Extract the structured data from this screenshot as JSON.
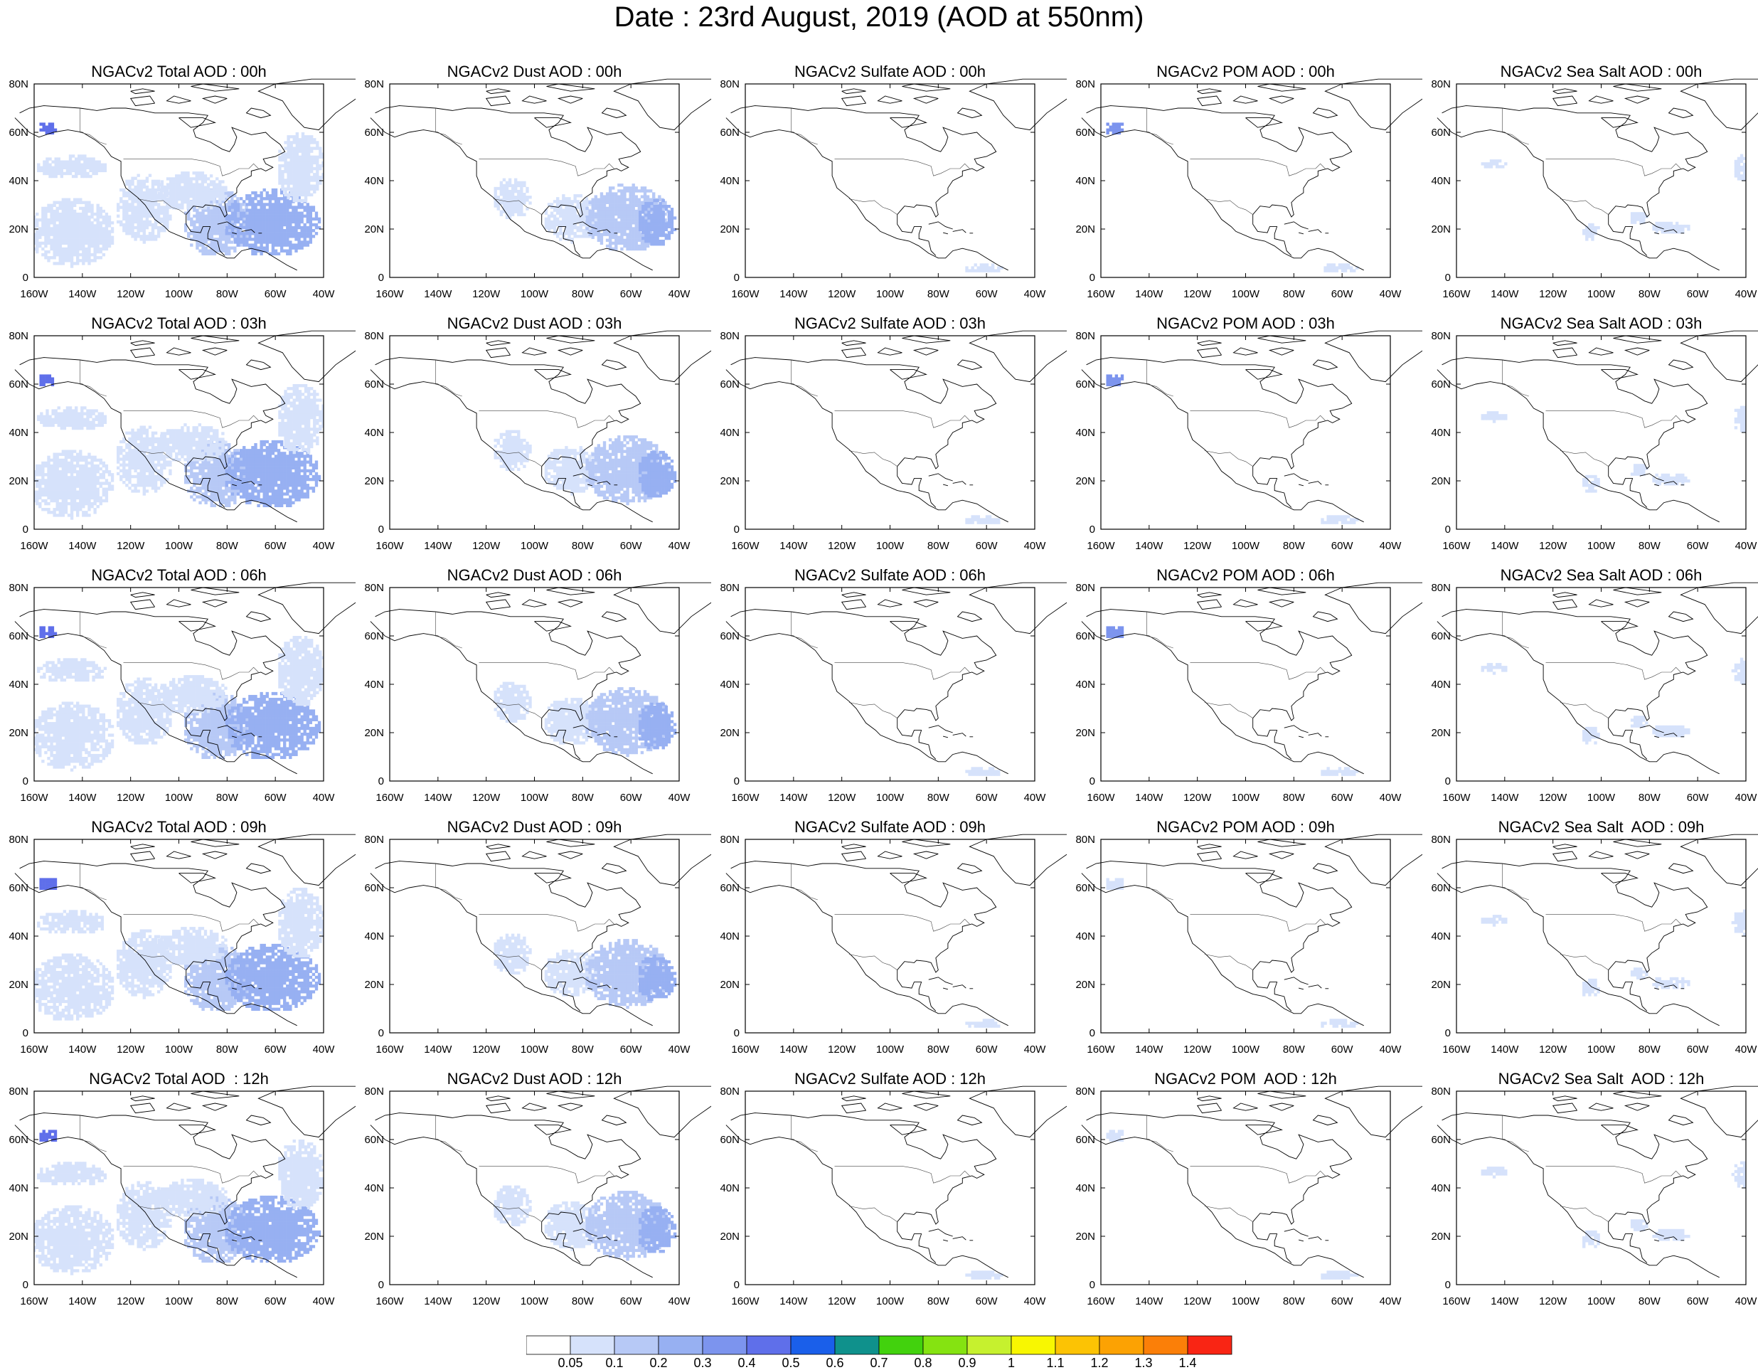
{
  "title": "Date : 23rd August, 2019 (AOD at 550nm)",
  "axes": {
    "lon_labels": [
      "160W",
      "140W",
      "120W",
      "100W",
      "80W",
      "60W",
      "40W"
    ],
    "lat_labels": [
      "80N",
      "60N",
      "40N",
      "20N",
      "0"
    ]
  },
  "colorbar": {
    "labels": [
      "0.05",
      "0.1",
      "0.2",
      "0.3",
      "0.4",
      "0.5",
      "0.6",
      "0.7",
      "0.8",
      "0.9",
      "1",
      "1.1",
      "1.2",
      "1.3",
      "1.4"
    ],
    "colors": [
      "#ffffff",
      "#d6e2fb",
      "#b7c9f6",
      "#97b0f2",
      "#7c94ee",
      "#5f6fea",
      "#1a5fea",
      "#0f918c",
      "#42d20d",
      "#85e311",
      "#c6f12e",
      "#f8f701",
      "#fcc304",
      "#fca203",
      "#fb7f08",
      "#f92514"
    ]
  },
  "rows": [
    {
      "titles": [
        "NGACv2 Total AOD : 00h",
        "NGACv2 Dust AOD : 00h",
        "NGACv2 Sulfate AOD : 00h",
        "NGACv2 POM AOD : 00h",
        "NGACv2 Sea Salt AOD : 00h"
      ]
    },
    {
      "titles": [
        "NGACv2 Total AOD : 03h",
        "NGACv2 Dust AOD : 03h",
        "NGACv2 Sulfate AOD : 03h",
        "NGACv2 POM AOD : 03h",
        "NGACv2 Sea Salt AOD : 03h"
      ]
    },
    {
      "titles": [
        "NGACv2 Total AOD : 06h",
        "NGACv2 Dust AOD : 06h",
        "NGACv2 Sulfate AOD : 06h",
        "NGACv2 POM AOD : 06h",
        "NGACv2 Sea Salt AOD : 06h"
      ]
    },
    {
      "titles": [
        "NGACv2 Total AOD : 09h",
        "NGACv2 Dust AOD : 09h",
        "NGACv2 Sulfate AOD : 09h",
        "NGACv2 POM AOD : 09h",
        "NGACv2 Sea Salt  AOD : 09h"
      ]
    },
    {
      "titles": [
        "NGACv2 Total AOD  : 12h",
        "NGACv2 Dust AOD : 12h",
        "NGACv2 Sulfate AOD : 12h",
        "NGACv2 POM  AOD : 12h",
        "NGACv2 Sea Salt  AOD : 12h"
      ]
    }
  ],
  "map_extent": {
    "lon": [
      -160,
      -40
    ],
    "lat": [
      0,
      80
    ]
  },
  "aod_fields": {
    "total": [
      {
        "lon": -155,
        "lat": 61,
        "rlon": 4,
        "rlat": 3,
        "level": 5
      },
      {
        "lon": -145,
        "lat": 45,
        "rlon": 15,
        "rlat": 5,
        "level": 1
      },
      {
        "lon": -145,
        "lat": 18,
        "rlon": 18,
        "rlat": 14,
        "level": 1
      },
      {
        "lon": -115,
        "lat": 28,
        "rlon": 12,
        "rlat": 14,
        "level": 1
      },
      {
        "lon": -85,
        "lat": 22,
        "rlon": 14,
        "rlat": 14,
        "level": 2
      },
      {
        "lon": -62,
        "lat": 22,
        "rlon": 20,
        "rlat": 14,
        "level": 3
      },
      {
        "lon": -50,
        "lat": 45,
        "rlon": 10,
        "rlat": 15,
        "level": 1
      },
      {
        "lon": -95,
        "lat": 35,
        "rlon": 15,
        "rlat": 8,
        "level": 1
      }
    ],
    "dust": [
      {
        "lon": -110,
        "lat": 32,
        "rlon": 8,
        "rlat": 9,
        "level": 1
      },
      {
        "lon": -85,
        "lat": 24,
        "rlon": 12,
        "rlat": 10,
        "level": 1
      },
      {
        "lon": -62,
        "lat": 24,
        "rlon": 18,
        "rlat": 14,
        "level": 2
      },
      {
        "lon": -50,
        "lat": 22,
        "rlon": 8,
        "rlat": 10,
        "level": 3
      }
    ],
    "sulfate": [
      {
        "lon": -62,
        "lat": 3,
        "rlon": 8,
        "rlat": 2,
        "level": 1
      }
    ],
    "pom": [
      {
        "lon": -155,
        "lat": 61,
        "rlon": 4,
        "rlat": 3,
        "level": 4
      },
      {
        "lon": -62,
        "lat": 3,
        "rlon": 8,
        "rlat": 2,
        "level": 1
      }
    ],
    "seasalt": [
      {
        "lon": -145,
        "lat": 46,
        "rlon": 6,
        "rlat": 2,
        "level": 1
      },
      {
        "lon": -105,
        "lat": 18,
        "rlon": 4,
        "rlat": 4,
        "level": 1
      },
      {
        "lon": -85,
        "lat": 24,
        "rlon": 4,
        "rlat": 3,
        "level": 1
      },
      {
        "lon": -72,
        "lat": 20,
        "rlon": 8,
        "rlat": 3,
        "level": 1
      },
      {
        "lon": -42,
        "lat": 45,
        "rlon": 4,
        "rlat": 6,
        "level": 1
      }
    ]
  }
}
